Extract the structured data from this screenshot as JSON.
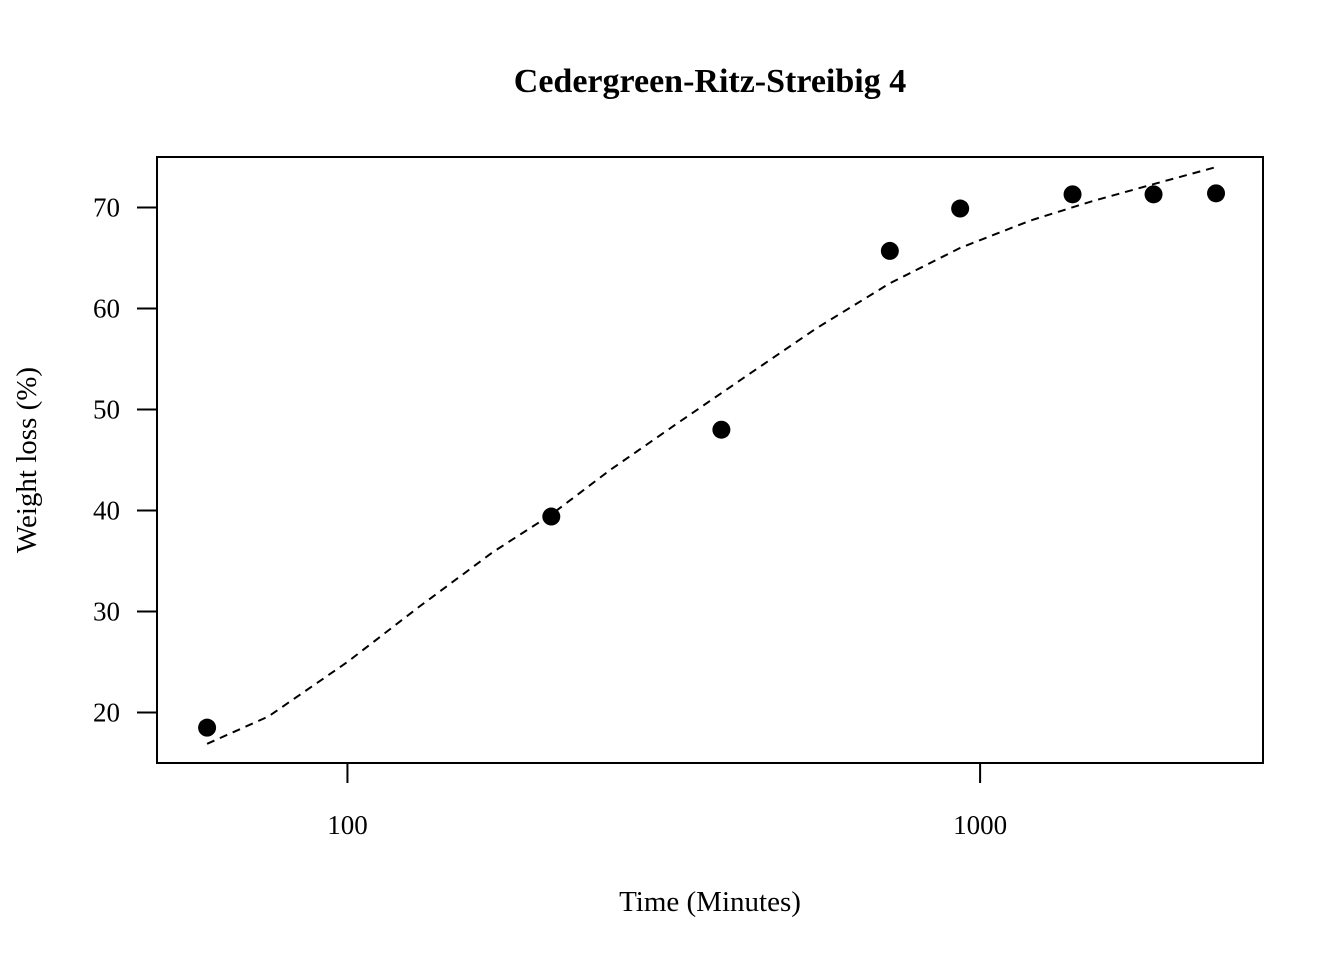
{
  "chart_data": {
    "type": "scatter",
    "title": "Cedergreen-Ritz-Streibig 4",
    "xlabel": "Time (Minutes)",
    "ylabel": "Weight loss (%)",
    "x_scale": "log",
    "xlim": [
      50,
      2800
    ],
    "ylim": [
      15,
      75
    ],
    "x_ticks": [
      100,
      1000
    ],
    "x_tick_labels": [
      "100",
      "1000"
    ],
    "y_ticks": [
      20,
      30,
      40,
      50,
      60,
      70
    ],
    "y_tick_labels": [
      "20",
      "30",
      "40",
      "50",
      "60",
      "70"
    ],
    "grid": false,
    "legend": "none",
    "marker_color": "#000000",
    "points": [
      {
        "x": 60,
        "y": 18.5
      },
      {
        "x": 210,
        "y": 39.4
      },
      {
        "x": 390,
        "y": 48.0
      },
      {
        "x": 720,
        "y": 65.7
      },
      {
        "x": 930,
        "y": 69.9
      },
      {
        "x": 1400,
        "y": 71.3
      },
      {
        "x": 1880,
        "y": 71.3
      },
      {
        "x": 2360,
        "y": 71.4
      }
    ],
    "fitted_curve": {
      "style": "dashed",
      "x": [
        60,
        75,
        100,
        130,
        170,
        210,
        260,
        330,
        420,
        550,
        720,
        930,
        1200,
        1500,
        1900,
        2360
      ],
      "y": [
        16.9,
        19.6,
        25.0,
        30.5,
        35.9,
        39.6,
        44.0,
        48.5,
        53.0,
        58.0,
        62.5,
        66.0,
        68.7,
        70.6,
        72.4,
        74.0
      ]
    }
  }
}
